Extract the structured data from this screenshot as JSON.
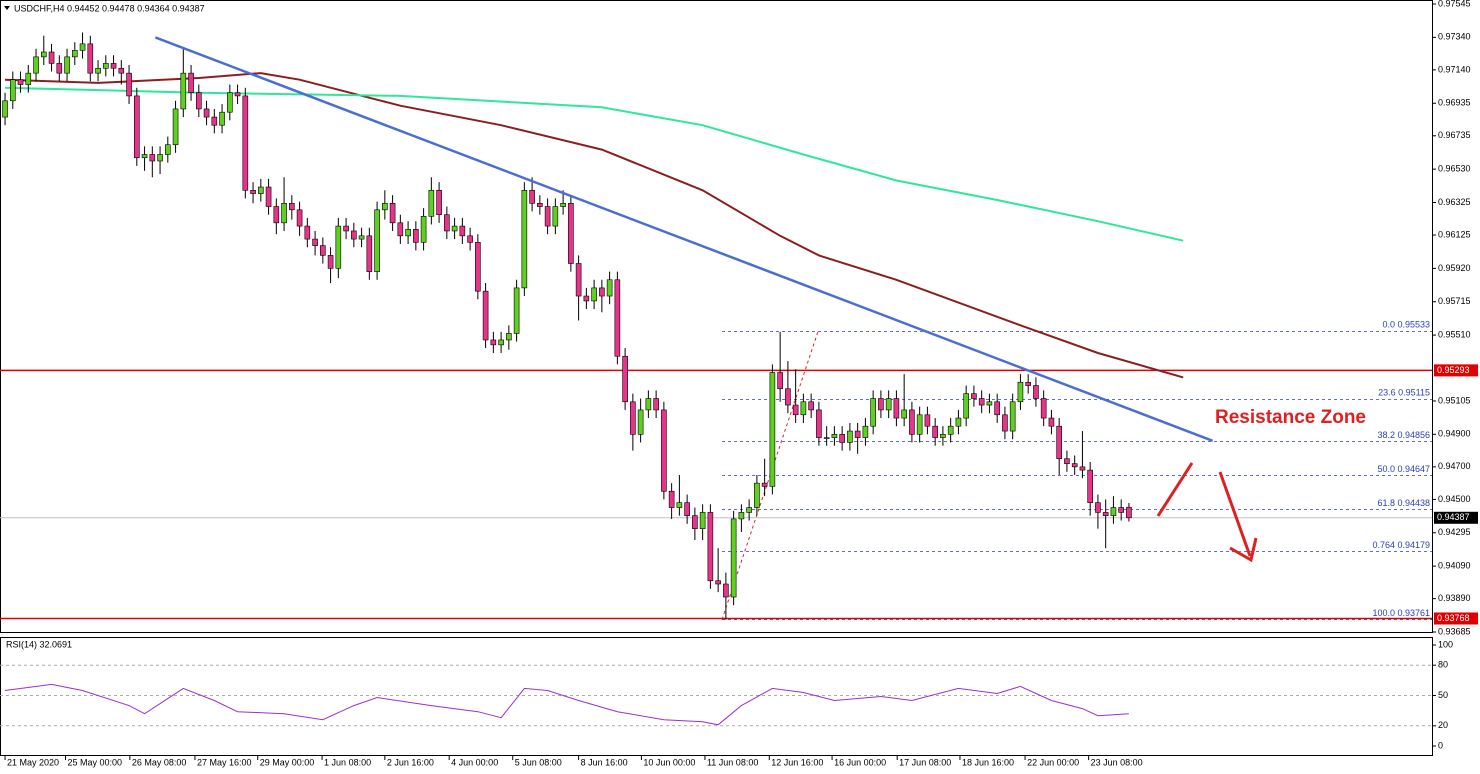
{
  "header": "USDCHF,H4  0.94452 0.94478 0.94364 0.94387",
  "chart_data": {
    "type": "candlestick",
    "open": [
      0.9685,
      0.9695,
      0.9708,
      0.9705,
      0.9712,
      0.9722,
      0.9725,
      0.9718,
      0.9712,
      0.9722,
      0.9726,
      0.973,
      0.9712,
      0.9715,
      0.9718,
      0.9715,
      0.9712,
      0.9698,
      0.966,
      0.9662,
      0.9658,
      0.9662,
      0.9668,
      0.969,
      0.9712,
      0.97,
      0.969,
      0.9685,
      0.968,
      0.9688,
      0.97,
      0.9698,
      0.964,
      0.9638,
      0.9642,
      0.963,
      0.962,
      0.9632,
      0.9628,
      0.9618,
      0.961,
      0.9606,
      0.96,
      0.9592,
      0.9618,
      0.9615,
      0.961,
      0.9612,
      0.959,
      0.9628,
      0.9632,
      0.962,
      0.9612,
      0.9616,
      0.9608,
      0.9624,
      0.964,
      0.9625,
      0.9615,
      0.9618,
      0.9612,
      0.9608,
      0.9578,
      0.9548,
      0.9545,
      0.9548,
      0.9552,
      0.958,
      0.964,
      0.9632,
      0.963,
      0.9618,
      0.963,
      0.9632,
      0.9595,
      0.9575,
      0.9572,
      0.958,
      0.9575,
      0.9585,
      0.9538,
      0.951,
      0.949,
      0.9505,
      0.9512,
      0.9505,
      0.9455,
      0.9445,
      0.9448,
      0.944,
      0.9432,
      0.9442,
      0.94,
      0.9398,
      0.939,
      0.9438,
      0.9442,
      0.9445,
      0.946,
      0.9458,
      0.9528,
      0.9518,
      0.9508,
      0.9502,
      0.951,
      0.9505,
      0.9488,
      0.9488,
      0.949,
      0.9485,
      0.9492,
      0.9488,
      0.9495,
      0.9512,
      0.9505,
      0.9512,
      0.95,
      0.9505,
      0.949,
      0.9502,
      0.9495,
      0.9488,
      0.949,
      0.9495,
      0.95,
      0.9515,
      0.9512,
      0.9508,
      0.951,
      0.9502,
      0.9492,
      0.951,
      0.9522,
      0.952,
      0.9512,
      0.95,
      0.9495,
      0.9475,
      0.9472,
      0.947,
      0.9468,
      0.9448,
      0.9442,
      0.944,
      0.9445,
      0.94452
    ],
    "high": [
      0.97,
      0.9713,
      0.9713,
      0.9717,
      0.9727,
      0.9735,
      0.973,
      0.9723,
      0.9727,
      0.9731,
      0.9737,
      0.9735,
      0.972,
      0.9723,
      0.9723,
      0.972,
      0.9717,
      0.9703,
      0.9667,
      0.9667,
      0.9667,
      0.9673,
      0.9695,
      0.9728,
      0.9717,
      0.9705,
      0.9695,
      0.969,
      0.9693,
      0.9705,
      0.9705,
      0.9703,
      0.9645,
      0.9647,
      0.9647,
      0.9635,
      0.9648,
      0.9637,
      0.9633,
      0.9623,
      0.9615,
      0.9611,
      0.9605,
      0.9623,
      0.9623,
      0.962,
      0.9617,
      0.9617,
      0.9633,
      0.964,
      0.9637,
      0.9625,
      0.9621,
      0.9621,
      0.9629,
      0.9648,
      0.9645,
      0.963,
      0.9623,
      0.9623,
      0.9617,
      0.9613,
      0.9583,
      0.9553,
      0.9553,
      0.9557,
      0.9585,
      0.9645,
      0.9648,
      0.9637,
      0.9635,
      0.9635,
      0.964,
      0.9637,
      0.96,
      0.958,
      0.9585,
      0.9585,
      0.959,
      0.959,
      0.9543,
      0.9515,
      0.9512,
      0.9517,
      0.9517,
      0.951,
      0.946,
      0.9465,
      0.9453,
      0.9445,
      0.9447,
      0.9447,
      0.942,
      0.9405,
      0.9443,
      0.9447,
      0.945,
      0.9465,
      0.9475,
      0.9533,
      0.9553,
      0.9535,
      0.953,
      0.9515,
      0.9515,
      0.951,
      0.9495,
      0.9495,
      0.9495,
      0.9497,
      0.9497,
      0.95,
      0.9517,
      0.9517,
      0.9517,
      0.9517,
      0.9527,
      0.951,
      0.9507,
      0.9507,
      0.95,
      0.9495,
      0.95,
      0.9505,
      0.952,
      0.952,
      0.9517,
      0.9515,
      0.9515,
      0.9507,
      0.9515,
      0.9527,
      0.9527,
      0.9525,
      0.9517,
      0.9505,
      0.95,
      0.948,
      0.9477,
      0.9492,
      0.9473,
      0.9453,
      0.945,
      0.9452,
      0.945,
      0.94478
    ],
    "low": [
      0.968,
      0.969,
      0.97,
      0.97,
      0.9707,
      0.9717,
      0.9713,
      0.9707,
      0.9707,
      0.9717,
      0.9721,
      0.9707,
      0.9707,
      0.971,
      0.971,
      0.9705,
      0.9693,
      0.9655,
      0.9652,
      0.9648,
      0.965,
      0.9657,
      0.9663,
      0.9685,
      0.9695,
      0.9685,
      0.968,
      0.9675,
      0.9675,
      0.9683,
      0.9693,
      0.9635,
      0.9632,
      0.9633,
      0.9625,
      0.9613,
      0.9615,
      0.9622,
      0.9612,
      0.9605,
      0.96,
      0.9595,
      0.9583,
      0.9586,
      0.961,
      0.9605,
      0.9605,
      0.9585,
      0.9585,
      0.9622,
      0.9615,
      0.9607,
      0.9607,
      0.9603,
      0.9603,
      0.9619,
      0.962,
      0.961,
      0.961,
      0.9607,
      0.9603,
      0.9573,
      0.9543,
      0.954,
      0.954,
      0.9542,
      0.9547,
      0.9575,
      0.9627,
      0.9625,
      0.9613,
      0.9613,
      0.9625,
      0.959,
      0.956,
      0.9567,
      0.9567,
      0.9565,
      0.957,
      0.9533,
      0.9505,
      0.948,
      0.9485,
      0.95,
      0.95,
      0.945,
      0.9438,
      0.944,
      0.9435,
      0.9425,
      0.9425,
      0.9395,
      0.9393,
      0.93761,
      0.9385,
      0.943,
      0.9437,
      0.944,
      0.9452,
      0.9453,
      0.951,
      0.9503,
      0.9497,
      0.9497,
      0.95,
      0.9483,
      0.9483,
      0.9483,
      0.948,
      0.948,
      0.9478,
      0.9483,
      0.949,
      0.95,
      0.95,
      0.9495,
      0.9495,
      0.9485,
      0.9485,
      0.949,
      0.9483,
      0.9483,
      0.9485,
      0.949,
      0.9495,
      0.9507,
      0.9503,
      0.9503,
      0.9497,
      0.9487,
      0.9487,
      0.9505,
      0.9515,
      0.9507,
      0.9495,
      0.949,
      0.9465,
      0.9467,
      0.9465,
      0.9463,
      0.944,
      0.9432,
      0.942,
      0.9435,
      0.9437,
      0.94364
    ],
    "close": [
      0.9695,
      0.9708,
      0.9705,
      0.9712,
      0.9722,
      0.9725,
      0.9718,
      0.9712,
      0.9722,
      0.9726,
      0.973,
      0.9712,
      0.9715,
      0.9718,
      0.9715,
      0.9712,
      0.9698,
      0.966,
      0.9662,
      0.9658,
      0.9662,
      0.9668,
      0.969,
      0.9712,
      0.97,
      0.969,
      0.9685,
      0.968,
      0.9688,
      0.97,
      0.9698,
      0.964,
      0.9638,
      0.9642,
      0.963,
      0.962,
      0.9632,
      0.9628,
      0.9618,
      0.961,
      0.9606,
      0.96,
      0.9592,
      0.9618,
      0.9615,
      0.961,
      0.9612,
      0.959,
      0.9628,
      0.9632,
      0.962,
      0.9612,
      0.9616,
      0.9608,
      0.9624,
      0.964,
      0.9625,
      0.9615,
      0.9618,
      0.9612,
      0.9608,
      0.9578,
      0.9548,
      0.9545,
      0.9548,
      0.9552,
      0.958,
      0.964,
      0.9632,
      0.963,
      0.9618,
      0.963,
      0.9632,
      0.9595,
      0.9575,
      0.9572,
      0.958,
      0.9575,
      0.9585,
      0.9538,
      0.951,
      0.949,
      0.9505,
      0.9512,
      0.9505,
      0.9455,
      0.9445,
      0.9448,
      0.944,
      0.9432,
      0.9442,
      0.94,
      0.9398,
      0.939,
      0.9438,
      0.9442,
      0.9445,
      0.946,
      0.9458,
      0.9528,
      0.9518,
      0.9508,
      0.9502,
      0.951,
      0.9505,
      0.9488,
      0.9488,
      0.949,
      0.9485,
      0.9492,
      0.9488,
      0.9495,
      0.9512,
      0.9505,
      0.9512,
      0.95,
      0.9505,
      0.949,
      0.9502,
      0.9495,
      0.9488,
      0.949,
      0.9495,
      0.95,
      0.9515,
      0.9512,
      0.9508,
      0.951,
      0.9502,
      0.9492,
      0.951,
      0.9522,
      0.952,
      0.9512,
      0.95,
      0.9495,
      0.9475,
      0.9472,
      0.947,
      0.9468,
      0.9448,
      0.9442,
      0.944,
      0.9445,
      0.9442,
      0.94387
    ],
    "up_color": "#5fd01f",
    "down_color": "#e8338a",
    "xlim": [
      -0.65,
      184.1
    ],
    "ylim": [
      0.93685,
      0.97545
    ],
    "yticks": [
      0.97545,
      {
        "value": 0.9734,
        "label": "0.97340"
      },
      {
        "value": 0.9714,
        "label": "0.97140"
      },
      0.96935,
      {
        "value": 0.96735,
        "label": "0.96735"
      },
      {
        "value": 0.9653,
        "label": "0.96530"
      },
      0.96325,
      {
        "value": 0.96125,
        "label": "0.96125"
      },
      {
        "value": 0.9592,
        "label": "0.95920"
      },
      0.95715,
      {
        "value": 0.9551,
        "label": "0.95510"
      },
      {
        "value": 0.95105,
        "label": "0.95105"
      },
      {
        "value": 0.949,
        "label": "0.94900"
      },
      {
        "value": 0.947,
        "label": "0.94700"
      },
      {
        "value": 0.945,
        "label": "0.94500"
      },
      0.94295,
      {
        "value": 0.9409,
        "label": "0.94090"
      },
      {
        "value": 0.9389,
        "label": "0.93890"
      },
      0.93685
    ],
    "xticks": [
      {
        "value": 0,
        "label": "21 May 2020"
      },
      {
        "value": 7.8,
        "label": "25 May 00:00"
      },
      {
        "value": 16.1,
        "label": "26 May 08:00"
      },
      {
        "value": 24.5,
        "label": "27 May 16:00"
      },
      {
        "value": 32.6,
        "label": "29 May 00:00"
      },
      {
        "value": 40.9,
        "label": "1 Jun 08:00"
      },
      {
        "value": 49,
        "label": "2 Jun 16:00"
      },
      {
        "value": 57.3,
        "label": "4 Jun 00:00"
      },
      {
        "value": 65.5,
        "label": "5 Jun 08:00"
      },
      {
        "value": 74,
        "label": "8 Jun 16:00"
      },
      {
        "value": 82.1,
        "label": "10 Jun 00:00"
      },
      {
        "value": 90.3,
        "label": "11 Jun 08:00"
      },
      {
        "value": 98.6,
        "label": "12 Jun 16:00"
      },
      {
        "value": 106.7,
        "label": "16 Jun 00:00"
      },
      {
        "value": 115.1,
        "label": "17 Jun 08:00"
      },
      {
        "value": 123.2,
        "label": "18 Jun 16:00"
      },
      {
        "value": 131.6,
        "label": "22 Jun 00:00"
      },
      {
        "value": 139.8,
        "label": "23 Jun 08:00"
      }
    ],
    "moving_averages": [
      {
        "color": "#8b1f1f",
        "x": [
          0,
          12,
          25,
          33,
          38,
          51,
          64,
          77,
          90,
          100,
          105,
          115,
          131,
          141,
          152
        ],
        "values": [
          0.9708,
          0.9706,
          0.9709,
          0.9712,
          0.9708,
          0.9692,
          0.968,
          0.9665,
          0.964,
          0.9612,
          0.96,
          0.9585,
          0.9557,
          0.954,
          0.9525
        ]
      },
      {
        "color": "#2ee89a",
        "x": [
          0,
          25,
          51,
          77,
          90,
          103,
          115,
          128,
          141,
          152
        ],
        "values": [
          0.9703,
          0.97,
          0.9698,
          0.9691,
          0.968,
          0.9662,
          0.9646,
          0.9634,
          0.9621,
          0.9609
        ]
      }
    ],
    "trendline": {
      "color": "#4a6fd0",
      "x": [
        19.4,
        155.8
      ],
      "values": [
        0.9734,
        0.9486
      ]
    },
    "horizontal_lines": [
      {
        "value": 0.95293,
        "label": "0.95293",
        "color": "#e00000"
      },
      {
        "value": 0.93768,
        "label": "0.93768",
        "color": "#e00000"
      }
    ],
    "current_price": {
      "value": 0.94387,
      "label": "0.94387"
    },
    "fibonacci": {
      "color": "#2a3eb5",
      "anchor": {
        "x": [
          92.5,
          104.9
        ],
        "values": [
          0.93761,
          0.95533
        ]
      },
      "levels": [
        {
          "value": 0.95533,
          "label": "0.0 0.95533"
        },
        {
          "value": 0.95115,
          "label": "23.6 0.95115"
        },
        {
          "value": 0.94856,
          "label": "38.2 0.94856"
        },
        {
          "value": 0.94647,
          "label": "50.0 0.94647"
        },
        {
          "value": 0.94438,
          "label": "61.8 0.94438"
        },
        {
          "value": 0.94179,
          "label": "0.764 0.94179"
        },
        {
          "value": 0.93761,
          "label": "100.0 0.93761"
        }
      ]
    },
    "annotation": "Resistance Zone"
  },
  "rsi": {
    "title": "RSI(14) 32.0691",
    "color": "#9b30d0",
    "ylim": [
      0,
      100
    ],
    "yticks": [
      100,
      80,
      50,
      20,
      0
    ],
    "x": [
      0,
      6,
      10,
      16,
      18,
      23,
      27,
      30,
      36,
      41,
      45,
      48,
      55,
      61,
      64,
      67,
      70,
      74,
      79,
      85,
      90,
      92,
      95,
      99,
      103,
      107,
      113,
      117,
      123,
      128,
      131,
      135,
      139,
      141,
      145
    ],
    "values": [
      55,
      61,
      55,
      40,
      32,
      57,
      45,
      34,
      32,
      26,
      40,
      48,
      40,
      34,
      28,
      57,
      55,
      45,
      34,
      26,
      24,
      21,
      40,
      57,
      53,
      45,
      49,
      45,
      57,
      52,
      59,
      45,
      37,
      30,
      32
    ]
  }
}
